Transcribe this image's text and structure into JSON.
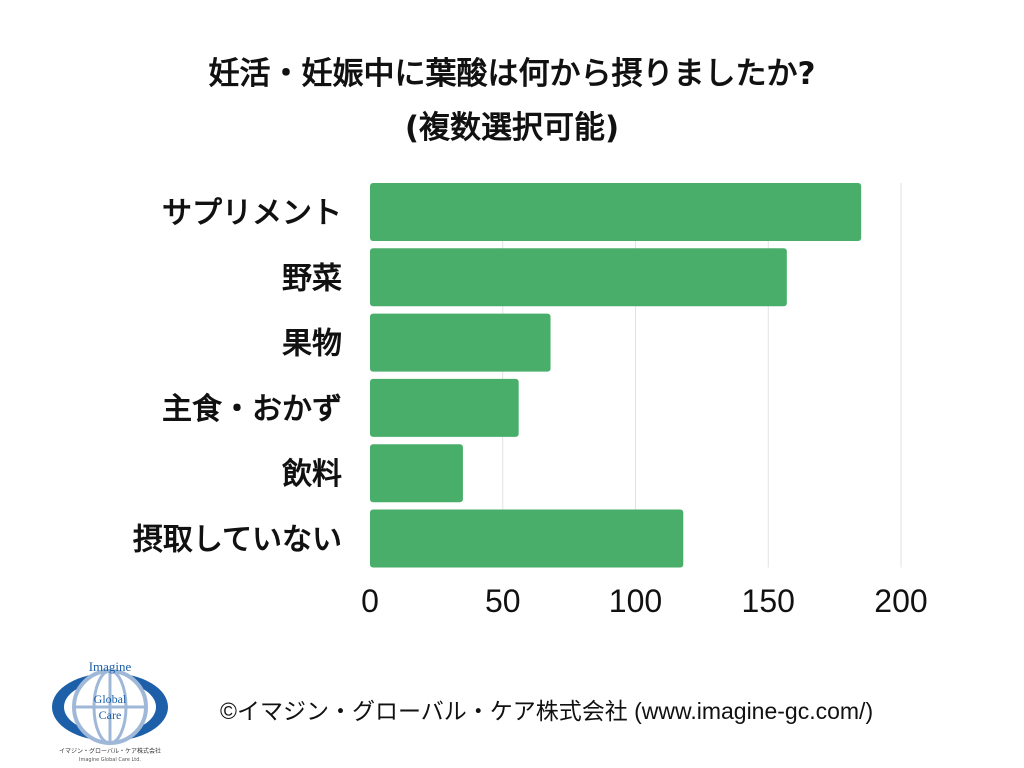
{
  "chart_data": {
    "type": "bar",
    "orientation": "horizontal",
    "title": "妊活・妊娠中に葉酸は何から摂りましたか?",
    "subtitle": "(複数選択可能)",
    "categories": [
      "サプリメント",
      "野菜",
      "果物",
      "主食・おかず",
      "飲料",
      "摂取していない"
    ],
    "values": [
      185,
      157,
      68,
      56,
      35,
      118
    ],
    "xlim": [
      0,
      200
    ],
    "xticks": [
      "0",
      "50",
      "100",
      "150",
      "200"
    ],
    "grid": true,
    "bar_color": "#48ae6a"
  },
  "footer": "©イマジン・グローバル・ケア株式会社 (www.imagine-gc.com/)",
  "logo": {
    "top": "Imagine",
    "middle1": "Global",
    "middle2": "Care",
    "jp": "イマジン・グローバル・ケア株式会社",
    "en": "Imagine Global Care Ltd."
  }
}
